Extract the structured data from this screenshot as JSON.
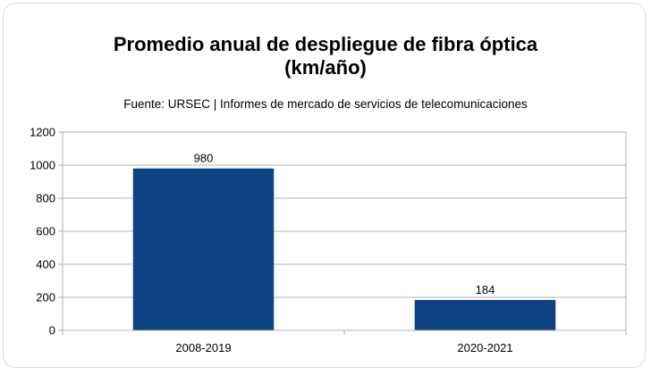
{
  "chart_data": {
    "type": "bar",
    "title": "Promedio anual de despliegue de fibra óptica",
    "title_line2": "(km/año)",
    "subtitle": "Fuente: URSEC | Informes de mercado de servicios de telecomunicaciones",
    "categories": [
      "2008-2019",
      "2020-2021"
    ],
    "values": [
      980,
      184
    ],
    "data_labels": [
      "980",
      "184"
    ],
    "ylim": [
      0,
      1200
    ],
    "yticks": [
      0,
      200,
      400,
      600,
      800,
      1000,
      1200
    ],
    "ytick_labels": [
      "0",
      "200",
      "400",
      "600",
      "800",
      "1000",
      "1200"
    ],
    "grid": true,
    "legend": "none",
    "bar_color": "#0d4383",
    "grid_color": "#b3b3b3"
  }
}
